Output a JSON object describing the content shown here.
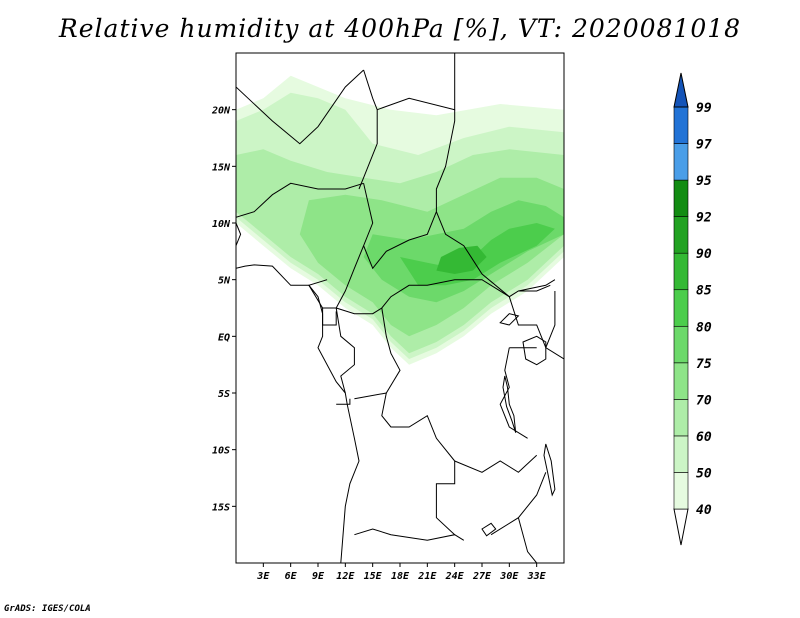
{
  "title": "Relative humidity at 400hPa [%], VT: 2020081018",
  "footer": "GrADS: IGES/COLA",
  "map": {
    "lon_range": [
      0,
      36
    ],
    "lat_range": [
      -20,
      25
    ],
    "lat_ticks": [
      {
        "value": 20,
        "label": "20N"
      },
      {
        "value": 15,
        "label": "15N"
      },
      {
        "value": 10,
        "label": "10N"
      },
      {
        "value": 5,
        "label": "5N"
      },
      {
        "value": 0,
        "label": "EQ"
      },
      {
        "value": -5,
        "label": "5S"
      },
      {
        "value": -10,
        "label": "10S"
      },
      {
        "value": -15,
        "label": "15S"
      }
    ],
    "lon_ticks": [
      {
        "value": 3,
        "label": "3E"
      },
      {
        "value": 6,
        "label": "6E"
      },
      {
        "value": 9,
        "label": "9E"
      },
      {
        "value": 12,
        "label": "12E"
      },
      {
        "value": 15,
        "label": "15E"
      },
      {
        "value": 18,
        "label": "18E"
      },
      {
        "value": 21,
        "label": "21E"
      },
      {
        "value": 24,
        "label": "24E"
      },
      {
        "value": 27,
        "label": "27E"
      },
      {
        "value": 30,
        "label": "30E"
      },
      {
        "value": 33,
        "label": "33E"
      }
    ]
  },
  "colorbar": {
    "levels": [
      "40",
      "50",
      "60",
      "70",
      "75",
      "80",
      "85",
      "90",
      "92",
      "95",
      "97",
      "99"
    ],
    "colors": [
      "#ffffff",
      "#e6fbe0",
      "#ccf5c6",
      "#aeeda8",
      "#8ee488",
      "#6cd96a",
      "#4ccd4c",
      "#34b934",
      "#22a222",
      "#128c12",
      "#4a9ee8",
      "#2273d6",
      "#1454b8"
    ]
  },
  "humidity_regions": [
    {
      "level": "40",
      "coords": [
        [
          0,
          20
        ],
        [
          3,
          21
        ],
        [
          6,
          23
        ],
        [
          9,
          22
        ],
        [
          12,
          21
        ],
        [
          17,
          20
        ],
        [
          22,
          19.5
        ],
        [
          29,
          20.5
        ],
        [
          36,
          20
        ],
        [
          36,
          7
        ],
        [
          32,
          4
        ],
        [
          28,
          2
        ],
        [
          25,
          0
        ],
        [
          22,
          -1.5
        ],
        [
          19,
          -2.5
        ],
        [
          17,
          -1
        ],
        [
          15,
          1
        ],
        [
          12,
          2.5
        ],
        [
          9,
          4.5
        ],
        [
          6,
          6
        ],
        [
          3,
          8
        ],
        [
          0,
          10
        ]
      ]
    },
    {
      "level": "50",
      "coords": [
        [
          0,
          19
        ],
        [
          3,
          20
        ],
        [
          6,
          21.5
        ],
        [
          9,
          21
        ],
        [
          12,
          20
        ],
        [
          15,
          17
        ],
        [
          20,
          16
        ],
        [
          25,
          17.5
        ],
        [
          30,
          18.5
        ],
        [
          36,
          18
        ],
        [
          36,
          7.5
        ],
        [
          32,
          4.5
        ],
        [
          28,
          2.5
        ],
        [
          25,
          0.5
        ],
        [
          22,
          -1
        ],
        [
          19,
          -2
        ],
        [
          17,
          -0.5
        ],
        [
          15,
          1.5
        ],
        [
          12,
          3
        ],
        [
          9,
          5
        ],
        [
          6,
          6.5
        ],
        [
          3,
          8.5
        ],
        [
          0,
          10.5
        ]
      ]
    },
    {
      "level": "60",
      "coords": [
        [
          0,
          16
        ],
        [
          3,
          16.5
        ],
        [
          6,
          15.5
        ],
        [
          10,
          14.5
        ],
        [
          14,
          14
        ],
        [
          18,
          13.5
        ],
        [
          22,
          14.5
        ],
        [
          26,
          16
        ],
        [
          30,
          16.5
        ],
        [
          36,
          16
        ],
        [
          36,
          8
        ],
        [
          32,
          5
        ],
        [
          28,
          3
        ],
        [
          25,
          1
        ],
        [
          22,
          -0.5
        ],
        [
          19,
          -1.5
        ],
        [
          17,
          0
        ],
        [
          15,
          2
        ],
        [
          12,
          3.5
        ],
        [
          9,
          5.5
        ],
        [
          6,
          7
        ],
        [
          3,
          9
        ],
        [
          0,
          11
        ]
      ]
    },
    {
      "level": "70",
      "coords": [
        [
          8,
          12
        ],
        [
          12,
          12.5
        ],
        [
          16,
          12
        ],
        [
          21,
          11
        ],
        [
          25,
          12.5
        ],
        [
          29,
          14
        ],
        [
          33,
          14
        ],
        [
          36,
          13
        ],
        [
          36,
          9
        ],
        [
          32,
          6.5
        ],
        [
          28,
          4.5
        ],
        [
          25,
          2.5
        ],
        [
          22,
          1
        ],
        [
          19,
          0
        ],
        [
          17,
          1
        ],
        [
          15,
          3
        ],
        [
          12,
          4.5
        ],
        [
          9,
          6.5
        ],
        [
          7,
          9
        ]
      ]
    },
    {
      "level": "75",
      "coords": [
        [
          15,
          9
        ],
        [
          19,
          8.5
        ],
        [
          22,
          9
        ],
        [
          25,
          9.5
        ],
        [
          28,
          11
        ],
        [
          31,
          12
        ],
        [
          34,
          11.5
        ],
        [
          36,
          10.5
        ],
        [
          36,
          9
        ],
        [
          32,
          7.5
        ],
        [
          28,
          5.5
        ],
        [
          25,
          4
        ],
        [
          22,
          3
        ],
        [
          19,
          3.5
        ],
        [
          16,
          5
        ],
        [
          14,
          7
        ]
      ]
    },
    {
      "level": "80",
      "coords": [
        [
          18,
          7
        ],
        [
          21,
          6.5
        ],
        [
          24,
          6
        ],
        [
          26,
          7
        ],
        [
          28,
          8.5
        ],
        [
          30,
          9.5
        ],
        [
          33,
          10
        ],
        [
          35,
          9.5
        ],
        [
          33,
          8
        ],
        [
          29,
          6.5
        ],
        [
          26,
          5
        ],
        [
          23,
          4.5
        ],
        [
          20,
          4.5
        ]
      ]
    },
    {
      "level": "85",
      "coords": [
        [
          22,
          5.8
        ],
        [
          24,
          5.5
        ],
        [
          26,
          5.8
        ],
        [
          27.5,
          7
        ],
        [
          26.5,
          8
        ],
        [
          24.5,
          7.8
        ],
        [
          22.5,
          7
        ]
      ]
    }
  ],
  "country_borders": [
    [
      [
        0,
        10.5
      ],
      [
        2,
        11
      ],
      [
        4,
        12.5
      ],
      [
        6,
        13.5
      ],
      [
        9,
        13
      ],
      [
        12,
        13
      ],
      [
        14,
        13.5
      ]
    ],
    [
      [
        0,
        22
      ],
      [
        4,
        19
      ],
      [
        7,
        17
      ],
      [
        9,
        18.5
      ],
      [
        12,
        22
      ],
      [
        14,
        23.5
      ]
    ],
    [
      [
        14,
        23.5
      ],
      [
        15,
        21
      ],
      [
        15.5,
        20
      ],
      [
        15.5,
        17
      ],
      [
        14,
        14
      ],
      [
        13.5,
        13
      ]
    ],
    [
      [
        15.5,
        20
      ],
      [
        19,
        21
      ],
      [
        24,
        20
      ],
      [
        24,
        25
      ]
    ],
    [
      [
        24,
        20
      ],
      [
        24,
        19
      ],
      [
        23,
        15
      ],
      [
        22,
        13
      ],
      [
        22,
        11
      ]
    ],
    [
      [
        14,
        13.5
      ],
      [
        15,
        10
      ],
      [
        14,
        8
      ],
      [
        15,
        6
      ],
      [
        16.5,
        7.5
      ],
      [
        19,
        8.5
      ],
      [
        21,
        9
      ],
      [
        22,
        11
      ]
    ],
    [
      [
        22,
        11
      ],
      [
        23,
        9
      ],
      [
        25,
        8
      ],
      [
        27,
        5.5
      ],
      [
        30,
        3.5
      ],
      [
        31,
        4
      ],
      [
        34,
        4.5
      ],
      [
        35,
        5
      ]
    ],
    [
      [
        14,
        8
      ],
      [
        13,
        6
      ],
      [
        12,
        4
      ],
      [
        11,
        2.5
      ]
    ],
    [
      [
        11,
        2.5
      ],
      [
        13,
        2
      ],
      [
        15,
        2
      ],
      [
        16,
        2.5
      ],
      [
        17,
        3.5
      ],
      [
        19,
        4.5
      ],
      [
        21,
        4.5
      ],
      [
        24,
        5
      ],
      [
        27,
        5
      ],
      [
        30,
        3.5
      ]
    ],
    [
      [
        10,
        5
      ],
      [
        8,
        4.5
      ],
      [
        9.5,
        2.5
      ],
      [
        11,
        2.5
      ]
    ],
    [
      [
        9.5,
        2.5
      ],
      [
        9.5,
        1
      ],
      [
        11,
        1
      ],
      [
        11,
        2.2
      ]
    ],
    [
      [
        11,
        2.5
      ],
      [
        11.5,
        0
      ],
      [
        13,
        -1
      ],
      [
        13,
        -2.5
      ],
      [
        11.5,
        -3.5
      ],
      [
        12,
        -5
      ]
    ],
    [
      [
        16,
        2.5
      ],
      [
        16.5,
        0
      ],
      [
        17,
        -1.5
      ],
      [
        18,
        -3
      ],
      [
        16.5,
        -5
      ],
      [
        13,
        -5.5
      ]
    ],
    [
      [
        16.5,
        -5
      ],
      [
        16,
        -7
      ],
      [
        17,
        -8
      ],
      [
        19,
        -8
      ],
      [
        21,
        -7
      ],
      [
        22,
        -9
      ],
      [
        24,
        -11
      ]
    ],
    [
      [
        13,
        -17.5
      ],
      [
        15,
        -17
      ],
      [
        17,
        -17.5
      ],
      [
        21,
        -18
      ],
      [
        24,
        -17.5
      ],
      [
        25,
        -18
      ]
    ],
    [
      [
        24,
        -11
      ],
      [
        24,
        -13
      ],
      [
        22,
        -13
      ],
      [
        22,
        -16
      ],
      [
        24,
        -17.5
      ]
    ],
    [
      [
        30,
        -1
      ],
      [
        29.5,
        -3
      ],
      [
        30,
        -4.5
      ],
      [
        29,
        -6
      ],
      [
        30,
        -8
      ],
      [
        32,
        -9
      ]
    ],
    [
      [
        24,
        -11
      ],
      [
        27,
        -12
      ],
      [
        29,
        -11
      ],
      [
        31,
        -12
      ],
      [
        33,
        -10.5
      ]
    ],
    [
      [
        28,
        -17.5
      ],
      [
        31,
        -16
      ],
      [
        33,
        -14
      ],
      [
        34,
        -12
      ]
    ],
    [
      [
        31,
        -16
      ],
      [
        32,
        -19
      ],
      [
        33,
        -20
      ]
    ],
    [
      [
        30,
        3.5
      ],
      [
        31,
        1
      ],
      [
        33,
        1
      ],
      [
        34,
        -1
      ],
      [
        36,
        -2
      ]
    ],
    [
      [
        30,
        -1
      ],
      [
        33,
        -1
      ]
    ],
    [
      [
        31,
        4
      ],
      [
        33,
        4
      ],
      [
        34.5,
        4.5
      ]
    ],
    [
      [
        34,
        -1
      ],
      [
        35,
        1
      ],
      [
        35,
        4
      ]
    ],
    [
      [
        11,
        -6
      ],
      [
        12.5,
        -6
      ],
      [
        12.5,
        -5.5
      ]
    ]
  ],
  "coastlines": [
    [
      [
        0,
        6
      ],
      [
        1,
        6.2
      ],
      [
        2,
        6.3
      ],
      [
        4,
        6.2
      ],
      [
        6,
        4.5
      ],
      [
        8,
        4.5
      ],
      [
        9,
        3.5
      ],
      [
        9.5,
        2
      ],
      [
        9.5,
        0
      ],
      [
        9,
        -1
      ],
      [
        11,
        -4
      ],
      [
        12,
        -5
      ],
      [
        12.2,
        -6
      ],
      [
        13,
        -9
      ],
      [
        13.5,
        -11
      ],
      [
        12.5,
        -13
      ],
      [
        12,
        -15
      ],
      [
        11.8,
        -17
      ],
      [
        11.5,
        -20
      ]
    ],
    [
      [
        0,
        10
      ],
      [
        0.5,
        9
      ],
      [
        0,
        8
      ]
    ]
  ],
  "lakes": [
    [
      [
        29.5,
        -3.5
      ],
      [
        29.8,
        -4.5
      ],
      [
        30,
        -6
      ],
      [
        30.5,
        -7
      ],
      [
        30.7,
        -8.5
      ],
      [
        30.3,
        -7.5
      ],
      [
        29.7,
        -6.2
      ],
      [
        29.3,
        -4.5
      ]
    ],
    [
      [
        31.5,
        -0.5
      ],
      [
        33,
        0
      ],
      [
        34,
        -0.5
      ],
      [
        34,
        -2
      ],
      [
        33,
        -2.5
      ],
      [
        31.8,
        -2
      ]
    ],
    [
      [
        34,
        -9.5
      ],
      [
        34.6,
        -11
      ],
      [
        35,
        -13.5
      ],
      [
        34.7,
        -14
      ],
      [
        34.2,
        -12
      ],
      [
        33.8,
        -10.5
      ]
    ],
    [
      [
        27,
        -17
      ],
      [
        28,
        -16.5
      ],
      [
        28.5,
        -17
      ],
      [
        27.5,
        -17.6
      ]
    ],
    [
      [
        29,
        1.2
      ],
      [
        30,
        2
      ],
      [
        31,
        1.8
      ],
      [
        30,
        1
      ]
    ]
  ]
}
